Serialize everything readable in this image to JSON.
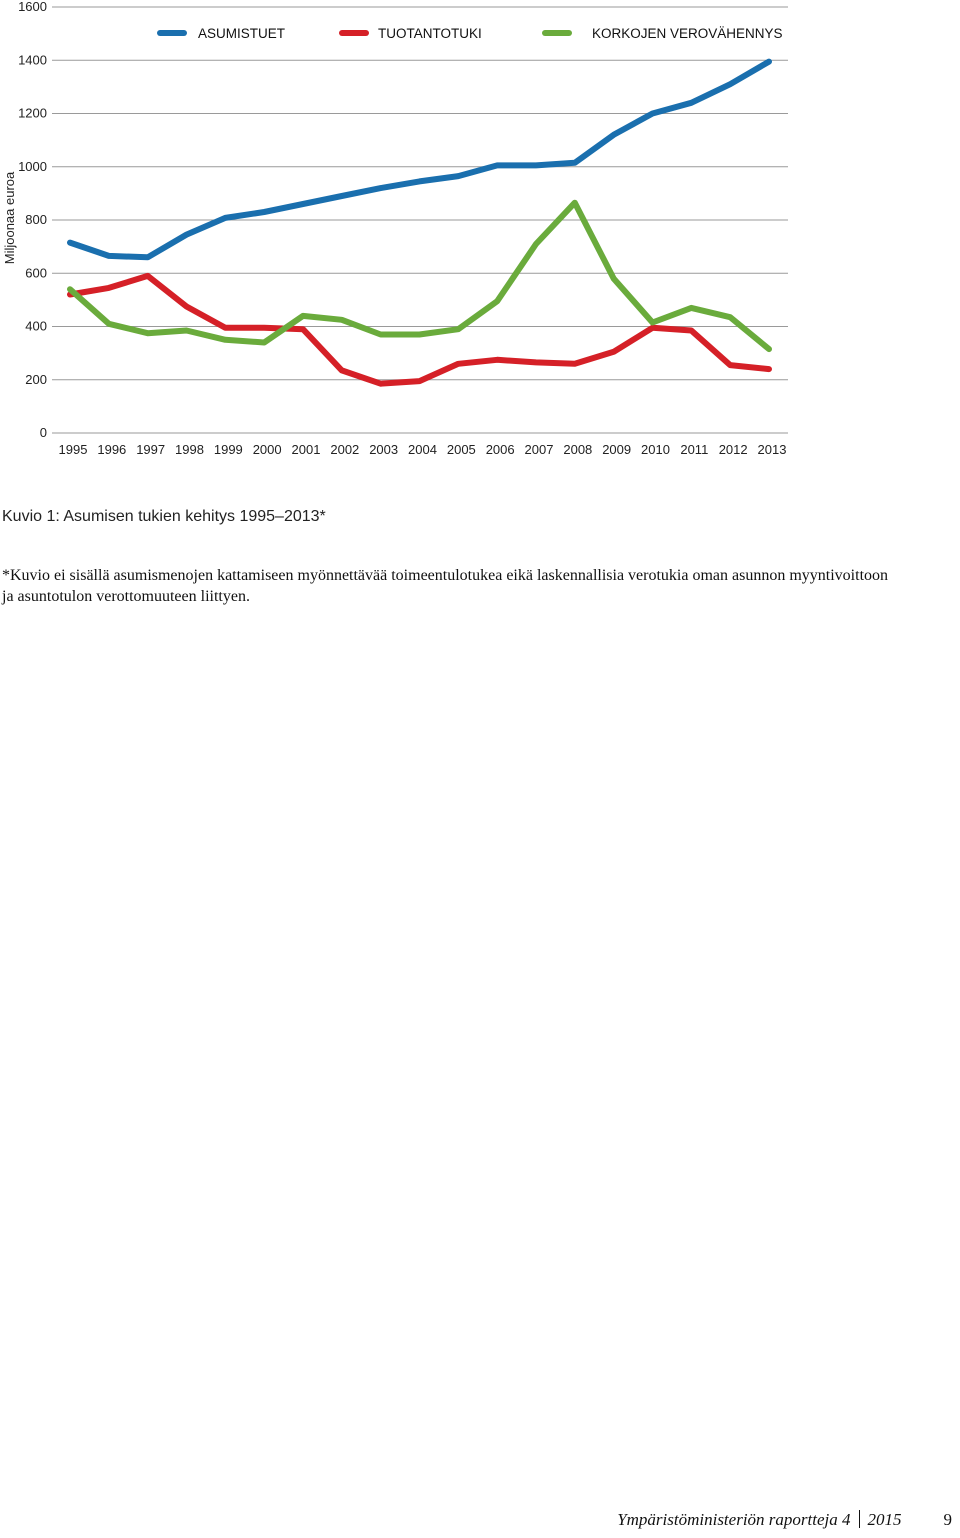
{
  "chart_data": {
    "type": "line",
    "ylabel": "Miljoonaa euroa",
    "ylim": [
      0,
      1600
    ],
    "yticks": [
      0,
      200,
      400,
      600,
      800,
      1000,
      1200,
      1400,
      1600
    ],
    "grid": true,
    "legend_position": "top",
    "categories": [
      "1995",
      "1996",
      "1997",
      "1998",
      "1999",
      "2000",
      "2001",
      "2002",
      "2003",
      "2004",
      "2005",
      "2006",
      "2007",
      "2008",
      "2009",
      "2010",
      "2011",
      "2012",
      "2013"
    ],
    "series": [
      {
        "name": "ASUMISTUET",
        "color": "#1a6fae",
        "values": [
          715,
          665,
          660,
          745,
          808,
          830,
          860,
          890,
          920,
          945,
          965,
          1005,
          1005,
          1015,
          1120,
          1200,
          1240,
          1310,
          1395
        ]
      },
      {
        "name": "TUOTANTOTUKI",
        "color": "#d52027",
        "values": [
          520,
          545,
          590,
          475,
          395,
          395,
          390,
          235,
          185,
          195,
          260,
          275,
          265,
          260,
          305,
          395,
          385,
          255,
          240
        ]
      },
      {
        "name": "KORKOJEN VEROVÄHENNYS",
        "color": "#6aab3c",
        "values": [
          540,
          410,
          375,
          385,
          350,
          340,
          440,
          425,
          370,
          370,
          390,
          495,
          710,
          865,
          580,
          415,
          470,
          435,
          315
        ]
      }
    ]
  },
  "caption": "Kuvio 1: Asumisen tukien kehitys 1995–2013*",
  "note": "*Kuvio ei sisällä asumismenojen kattamiseen myönnettävää toimeentulotukea eikä laskennallisia verotukia oman asunnon myyntivoittoon ja asuntotulon verottomuuteen liittyen.",
  "footer": {
    "series_title": "Ympäristöministeriön raportteja 4",
    "year": "2015",
    "page": "9"
  }
}
